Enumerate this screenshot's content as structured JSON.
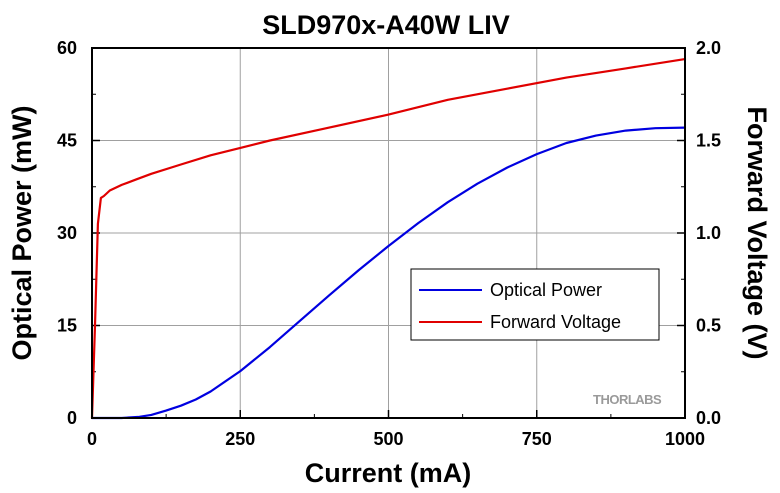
{
  "chart_data": {
    "type": "line",
    "title": "SLD970x-A40W LIV",
    "xlabel": "Current (mA)",
    "ylabel": "Optical Power (mW)",
    "y2label": "Forward Voltage (V)",
    "xlim": [
      0,
      1000
    ],
    "ylim": [
      0,
      60
    ],
    "y2lim": [
      0,
      2.0
    ],
    "xticks": [
      "0",
      "250",
      "500",
      "750",
      "1000"
    ],
    "yticks": [
      "0",
      "15",
      "30",
      "45",
      "60"
    ],
    "y2ticks": [
      "0.0",
      "0.5",
      "1.0",
      "1.5",
      "2.0"
    ],
    "grid": true,
    "legend_position": "center-right",
    "series": [
      {
        "name": "Optical Power",
        "axis": "left",
        "color": "#0000e0",
        "x": [
          0,
          50,
          80,
          100,
          125,
          150,
          175,
          200,
          250,
          300,
          350,
          400,
          450,
          500,
          550,
          600,
          650,
          700,
          750,
          800,
          850,
          900,
          950,
          1000
        ],
        "y": [
          0,
          0,
          0.2,
          0.5,
          1.2,
          2.0,
          3.0,
          4.3,
          7.6,
          11.5,
          15.7,
          19.9,
          24.0,
          27.9,
          31.6,
          35.0,
          38.0,
          40.6,
          42.8,
          44.6,
          45.8,
          46.6,
          47.0,
          47.1
        ]
      },
      {
        "name": "Forward Voltage",
        "axis": "right",
        "color": "#e00000",
        "x": [
          0,
          5,
          10,
          15,
          20,
          30,
          50,
          75,
          100,
          150,
          200,
          250,
          300,
          400,
          500,
          600,
          700,
          800,
          900,
          1000
        ],
        "y": [
          0,
          0.5,
          1.05,
          1.19,
          1.2,
          1.23,
          1.26,
          1.29,
          1.32,
          1.37,
          1.42,
          1.46,
          1.5,
          1.57,
          1.64,
          1.72,
          1.78,
          1.84,
          1.89,
          1.94
        ]
      }
    ]
  },
  "watermark": "THORLABS"
}
